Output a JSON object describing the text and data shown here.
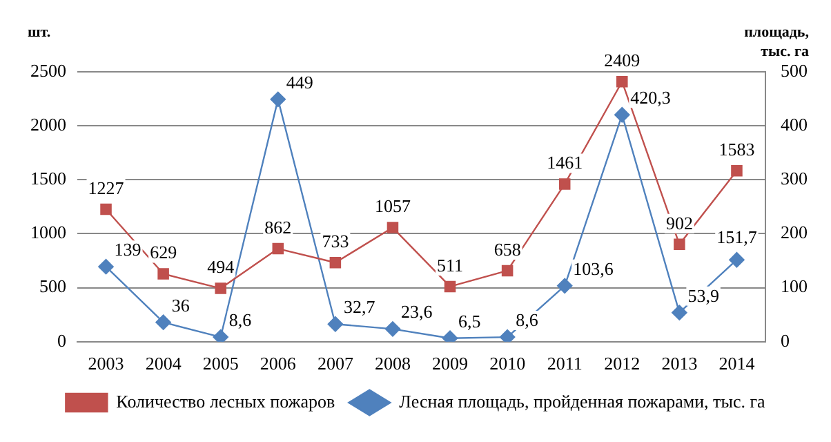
{
  "chart_data": {
    "type": "line",
    "ylabel": "шт.",
    "y2label": "площадь, тыс. га",
    "categories": [
      "2003",
      "2004",
      "2005",
      "2006",
      "2007",
      "2008",
      "2009",
      "2010",
      "2011",
      "2012",
      "2013",
      "2014"
    ],
    "series": [
      {
        "name": "Количество лесных пожаров",
        "color": "#c0504d",
        "marker": "square",
        "values": [
          1227,
          629,
          494,
          862,
          733,
          1057,
          511,
          658,
          1461,
          2409,
          902,
          1583
        ],
        "value_labels": [
          "1227",
          "629",
          "494",
          "862",
          "733",
          "1057",
          "511",
          "658",
          "1461",
          "2409",
          "902",
          "1583"
        ]
      },
      {
        "name": "Лесная площадь, пройденная пожарами, тыс. га",
        "color": "#4f81bd",
        "marker": "diamond",
        "axis": "y2",
        "values": [
          139,
          36,
          8.6,
          449,
          32.7,
          23.6,
          6.5,
          8.6,
          103.6,
          420.3,
          53.9,
          151.7
        ],
        "value_labels": [
          "139",
          "36",
          "8,6",
          "449",
          "32,7",
          "23,6",
          "6,5",
          "8,6",
          "103,6",
          "420,3",
          "53,9",
          "151,7"
        ]
      }
    ],
    "ylim": [
      0,
      2500
    ],
    "yticks": [
      0,
      500,
      1000,
      1500,
      2000,
      2500
    ],
    "y2lim": [
      0,
      500
    ],
    "y2ticks": [
      0,
      100,
      200,
      300,
      400,
      500
    ],
    "grid": "y",
    "legend": "bottom"
  }
}
